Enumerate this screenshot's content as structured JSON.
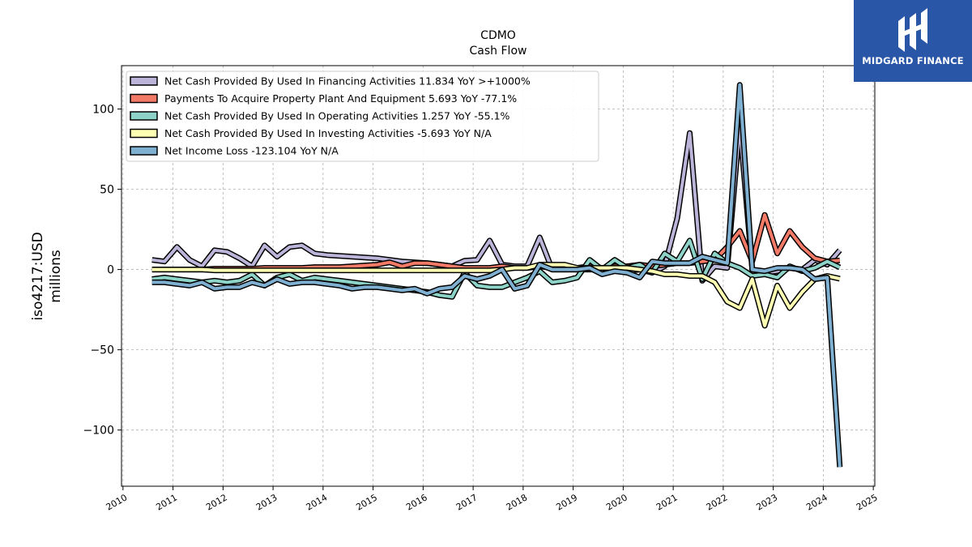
{
  "logo": {
    "text": "MIDGARD FINANCE",
    "icon": "midgard-logo-icon",
    "color": "#2a56a8"
  },
  "chart_data": {
    "type": "line",
    "title": "CDMO",
    "subtitle": "Cash Flow",
    "ylabel_line1": "iso4217:USD",
    "ylabel_line2": "millions",
    "xlim": [
      2009.97,
      2025.03
    ],
    "ylim": [
      -135,
      127
    ],
    "x_ticks": [
      2010,
      2011,
      2012,
      2013,
      2014,
      2015,
      2016,
      2017,
      2018,
      2019,
      2020,
      2021,
      2022,
      2023,
      2024,
      2025
    ],
    "y_ticks": [
      -100,
      -50,
      0,
      50,
      100
    ],
    "y_tick_labels": [
      "−100",
      "−50",
      "0",
      "50",
      "100"
    ],
    "grid": true,
    "legend_position": "top-left",
    "series": [
      {
        "name": "Net Cash Provided By Used In Financing Activities",
        "legend": "Net Cash Provided By Used In Financing Activities  11.834 YoY >+1000%",
        "color": "#bcb5d9",
        "points": [
          [
            2010.58,
            6
          ],
          [
            2010.83,
            5
          ],
          [
            2011.08,
            14
          ],
          [
            2011.33,
            6
          ],
          [
            2011.58,
            2
          ],
          [
            2011.83,
            12
          ],
          [
            2012.08,
            11
          ],
          [
            2012.33,
            7
          ],
          [
            2012.58,
            2
          ],
          [
            2012.83,
            15
          ],
          [
            2013.08,
            8
          ],
          [
            2013.33,
            14
          ],
          [
            2013.58,
            15
          ],
          [
            2013.83,
            10
          ],
          [
            2014.08,
            9
          ],
          [
            2014.33,
            8.5
          ],
          [
            2014.58,
            8
          ],
          [
            2014.83,
            7.5
          ],
          [
            2015.08,
            7
          ],
          [
            2015.33,
            6
          ],
          [
            2015.58,
            5
          ],
          [
            2015.83,
            4.5
          ],
          [
            2016.08,
            4
          ],
          [
            2016.33,
            3
          ],
          [
            2016.58,
            2
          ],
          [
            2016.83,
            5.5
          ],
          [
            2017.08,
            6
          ],
          [
            2017.33,
            18
          ],
          [
            2017.58,
            3
          ],
          [
            2017.83,
            2
          ],
          [
            2018.08,
            2
          ],
          [
            2018.33,
            20
          ],
          [
            2018.58,
            0
          ],
          [
            2018.83,
            0
          ],
          [
            2019.08,
            0
          ],
          [
            2019.33,
            0
          ],
          [
            2019.58,
            0
          ],
          [
            2019.83,
            0
          ],
          [
            2020.08,
            -1
          ],
          [
            2020.33,
            0
          ],
          [
            2020.58,
            -2
          ],
          [
            2020.83,
            2
          ],
          [
            2021.08,
            32
          ],
          [
            2021.33,
            85
          ],
          [
            2021.58,
            -7
          ],
          [
            2021.83,
            2
          ],
          [
            2022.08,
            1
          ],
          [
            2022.33,
            90
          ],
          [
            2022.58,
            0
          ],
          [
            2022.83,
            -2
          ],
          [
            2023.08,
            -1
          ],
          [
            2023.33,
            1
          ],
          [
            2023.58,
            0
          ],
          [
            2023.83,
            6
          ],
          [
            2024.08,
            3
          ],
          [
            2024.33,
            12
          ]
        ]
      },
      {
        "name": "Payments To Acquire Property Plant And Equipment",
        "legend": "Payments To Acquire Property Plant And Equipment  5.693 YoY -77.1%",
        "color": "#f47a68",
        "points": [
          [
            2010.58,
            0
          ],
          [
            2010.83,
            0
          ],
          [
            2011.08,
            0
          ],
          [
            2011.33,
            0
          ],
          [
            2011.58,
            0
          ],
          [
            2011.83,
            0.5
          ],
          [
            2012.08,
            0.5
          ],
          [
            2012.33,
            0.5
          ],
          [
            2012.58,
            0.5
          ],
          [
            2012.83,
            1
          ],
          [
            2013.08,
            1
          ],
          [
            2013.33,
            1
          ],
          [
            2013.58,
            1
          ],
          [
            2013.83,
            1.5
          ],
          [
            2014.08,
            1.5
          ],
          [
            2014.33,
            1.5
          ],
          [
            2014.58,
            2
          ],
          [
            2014.83,
            2.5
          ],
          [
            2015.08,
            3
          ],
          [
            2015.33,
            4.5
          ],
          [
            2015.58,
            2
          ],
          [
            2015.83,
            4
          ],
          [
            2016.08,
            4
          ],
          [
            2016.33,
            3
          ],
          [
            2016.58,
            2
          ],
          [
            2016.83,
            1
          ],
          [
            2017.08,
            1
          ],
          [
            2017.33,
            1
          ],
          [
            2017.58,
            2
          ],
          [
            2017.83,
            1
          ],
          [
            2018.08,
            1
          ],
          [
            2018.33,
            2
          ],
          [
            2018.58,
            1
          ],
          [
            2018.83,
            2
          ],
          [
            2019.08,
            1
          ],
          [
            2019.33,
            2
          ],
          [
            2019.58,
            1
          ],
          [
            2019.83,
            2
          ],
          [
            2020.08,
            2
          ],
          [
            2020.33,
            3
          ],
          [
            2020.58,
            2
          ],
          [
            2020.83,
            3
          ],
          [
            2021.08,
            4
          ],
          [
            2021.33,
            4
          ],
          [
            2021.58,
            5
          ],
          [
            2021.83,
            6
          ],
          [
            2022.08,
            14
          ],
          [
            2022.33,
            24
          ],
          [
            2022.58,
            5
          ],
          [
            2022.83,
            34
          ],
          [
            2023.08,
            10
          ],
          [
            2023.33,
            24
          ],
          [
            2023.58,
            14
          ],
          [
            2023.83,
            7
          ],
          [
            2024.08,
            5
          ],
          [
            2024.33,
            5.7
          ]
        ]
      },
      {
        "name": "Net Cash Provided By Used In Operating Activities",
        "legend": "Net Cash Provided By Used In Operating Activities  1.257 YoY -55.1%",
        "color": "#8dd3c7",
        "points": [
          [
            2010.58,
            -6
          ],
          [
            2010.83,
            -5
          ],
          [
            2011.08,
            -6
          ],
          [
            2011.33,
            -7
          ],
          [
            2011.58,
            -8
          ],
          [
            2011.83,
            -7
          ],
          [
            2012.08,
            -8
          ],
          [
            2012.33,
            -7
          ],
          [
            2012.58,
            -3
          ],
          [
            2012.83,
            -10
          ],
          [
            2013.08,
            -5
          ],
          [
            2013.33,
            -3
          ],
          [
            2013.58,
            -7
          ],
          [
            2013.83,
            -5
          ],
          [
            2014.08,
            -6
          ],
          [
            2014.33,
            -7
          ],
          [
            2014.58,
            -8
          ],
          [
            2014.83,
            -9
          ],
          [
            2015.08,
            -10
          ],
          [
            2015.33,
            -11
          ],
          [
            2015.58,
            -12
          ],
          [
            2015.83,
            -13
          ],
          [
            2016.08,
            -14
          ],
          [
            2016.33,
            -16
          ],
          [
            2016.58,
            -17
          ],
          [
            2016.83,
            -2
          ],
          [
            2017.08,
            -10
          ],
          [
            2017.33,
            -11
          ],
          [
            2017.58,
            -11
          ],
          [
            2017.83,
            -8
          ],
          [
            2018.08,
            -5
          ],
          [
            2018.33,
            -1
          ],
          [
            2018.58,
            -8
          ],
          [
            2018.83,
            -7
          ],
          [
            2019.08,
            -5
          ],
          [
            2019.33,
            6
          ],
          [
            2019.58,
            0
          ],
          [
            2019.83,
            6
          ],
          [
            2020.08,
            1
          ],
          [
            2020.33,
            3
          ],
          [
            2020.58,
            -2
          ],
          [
            2020.83,
            10
          ],
          [
            2021.08,
            5
          ],
          [
            2021.33,
            18
          ],
          [
            2021.58,
            -6
          ],
          [
            2021.83,
            10
          ],
          [
            2022.08,
            4
          ],
          [
            2022.33,
            1
          ],
          [
            2022.58,
            -4
          ],
          [
            2022.83,
            -3
          ],
          [
            2023.08,
            -5
          ],
          [
            2023.33,
            2
          ],
          [
            2023.58,
            -1
          ],
          [
            2023.83,
            1
          ],
          [
            2024.08,
            5
          ],
          [
            2024.33,
            1.3
          ]
        ]
      },
      {
        "name": "Net Cash Provided By Used In Investing Activities",
        "legend": "Net Cash Provided By Used In Investing Activities  -5.693 YoY N/A",
        "color": "#ffffb3",
        "points": [
          [
            2010.58,
            0
          ],
          [
            2010.83,
            0
          ],
          [
            2011.08,
            0
          ],
          [
            2011.33,
            0
          ],
          [
            2011.58,
            0
          ],
          [
            2011.83,
            -0.5
          ],
          [
            2012.08,
            -0.5
          ],
          [
            2012.33,
            -0.5
          ],
          [
            2012.58,
            -0.5
          ],
          [
            2012.83,
            -0.5
          ],
          [
            2013.08,
            -0.5
          ],
          [
            2013.33,
            -0.5
          ],
          [
            2013.58,
            -0.5
          ],
          [
            2013.83,
            -0.5
          ],
          [
            2014.08,
            -0.5
          ],
          [
            2014.33,
            -0.5
          ],
          [
            2014.58,
            -0.5
          ],
          [
            2014.83,
            -0.5
          ],
          [
            2015.08,
            -0.5
          ],
          [
            2015.33,
            -0.5
          ],
          [
            2015.58,
            -0.5
          ],
          [
            2015.83,
            -0.5
          ],
          [
            2016.08,
            -0.5
          ],
          [
            2016.33,
            -0.5
          ],
          [
            2016.58,
            -0.5
          ],
          [
            2016.83,
            -0.5
          ],
          [
            2017.08,
            -0.5
          ],
          [
            2017.33,
            -0.5
          ],
          [
            2017.58,
            0
          ],
          [
            2017.83,
            1
          ],
          [
            2018.08,
            1
          ],
          [
            2018.33,
            3
          ],
          [
            2018.58,
            3
          ],
          [
            2018.83,
            3
          ],
          [
            2019.08,
            1
          ],
          [
            2019.33,
            1
          ],
          [
            2019.58,
            1
          ],
          [
            2019.83,
            1
          ],
          [
            2020.08,
            1
          ],
          [
            2020.33,
            0
          ],
          [
            2020.58,
            -1
          ],
          [
            2020.83,
            -3
          ],
          [
            2021.08,
            -3
          ],
          [
            2021.33,
            -4
          ],
          [
            2021.58,
            -4
          ],
          [
            2021.83,
            -8
          ],
          [
            2022.08,
            -20
          ],
          [
            2022.33,
            -24
          ],
          [
            2022.58,
            -6
          ],
          [
            2022.83,
            -35
          ],
          [
            2023.08,
            -10
          ],
          [
            2023.33,
            -24
          ],
          [
            2023.58,
            -14
          ],
          [
            2023.83,
            -6
          ],
          [
            2024.08,
            -4
          ],
          [
            2024.33,
            -5.7
          ]
        ]
      },
      {
        "name": "Net Income Loss",
        "legend": "Net Income Loss  -123.104 YoY N/A",
        "color": "#7fb0d2",
        "points": [
          [
            2010.58,
            -8
          ],
          [
            2010.83,
            -8
          ],
          [
            2011.08,
            -9
          ],
          [
            2011.33,
            -10
          ],
          [
            2011.58,
            -8
          ],
          [
            2011.83,
            -12
          ],
          [
            2012.08,
            -11
          ],
          [
            2012.33,
            -11
          ],
          [
            2012.58,
            -8
          ],
          [
            2012.83,
            -10
          ],
          [
            2013.08,
            -6
          ],
          [
            2013.33,
            -9
          ],
          [
            2013.58,
            -8
          ],
          [
            2013.83,
            -8
          ],
          [
            2014.08,
            -9
          ],
          [
            2014.33,
            -10
          ],
          [
            2014.58,
            -12
          ],
          [
            2014.83,
            -11
          ],
          [
            2015.08,
            -11
          ],
          [
            2015.33,
            -12
          ],
          [
            2015.58,
            -13
          ],
          [
            2015.83,
            -12
          ],
          [
            2016.08,
            -15
          ],
          [
            2016.33,
            -12
          ],
          [
            2016.58,
            -11
          ],
          [
            2016.83,
            -4
          ],
          [
            2017.08,
            -6
          ],
          [
            2017.33,
            -4
          ],
          [
            2017.58,
            0
          ],
          [
            2017.83,
            -12
          ],
          [
            2018.08,
            -10
          ],
          [
            2018.33,
            3
          ],
          [
            2018.58,
            0
          ],
          [
            2018.83,
            0
          ],
          [
            2019.08,
            0
          ],
          [
            2019.33,
            1
          ],
          [
            2019.58,
            -3
          ],
          [
            2019.83,
            -1
          ],
          [
            2020.08,
            -2
          ],
          [
            2020.33,
            -5
          ],
          [
            2020.58,
            5
          ],
          [
            2020.83,
            4
          ],
          [
            2021.08,
            4
          ],
          [
            2021.33,
            4
          ],
          [
            2021.58,
            8
          ],
          [
            2021.83,
            6
          ],
          [
            2022.08,
            4
          ],
          [
            2022.33,
            115
          ],
          [
            2022.58,
            0
          ],
          [
            2022.83,
            -1
          ],
          [
            2023.08,
            1
          ],
          [
            2023.33,
            1
          ],
          [
            2023.58,
            0
          ],
          [
            2023.83,
            -6
          ],
          [
            2024.08,
            -5
          ],
          [
            2024.33,
            -123.1
          ]
        ]
      }
    ]
  }
}
